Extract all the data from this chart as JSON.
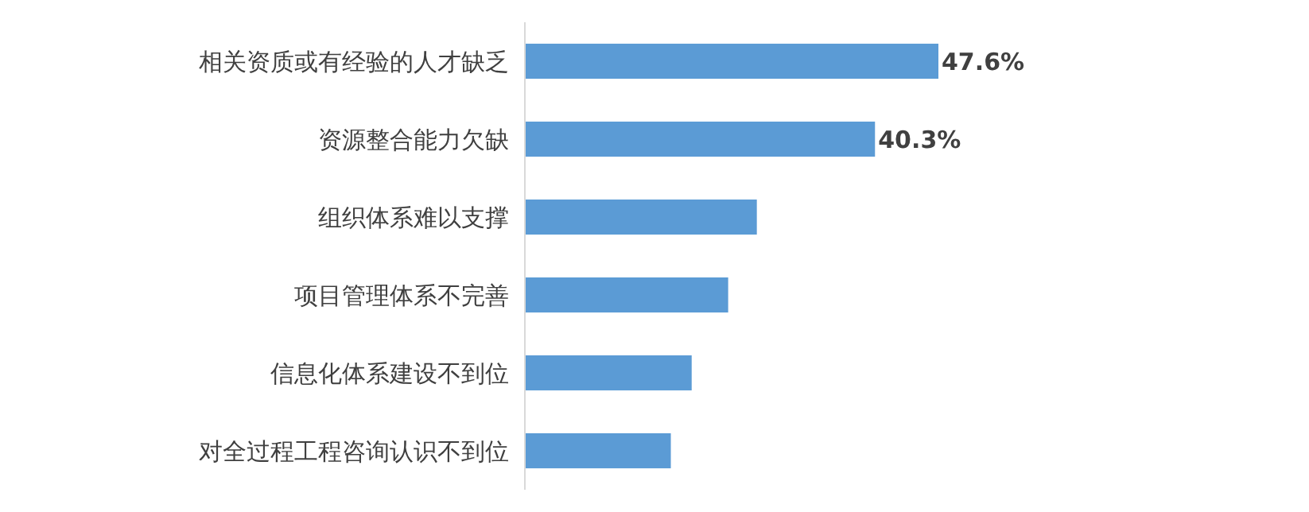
{
  "chart_data": {
    "type": "bar",
    "orientation": "horizontal",
    "categories": [
      "相关资质或有经验的人才缺乏",
      "资源整合能力欠缺",
      "组织体系难以支撑",
      "项目管理体系不完善",
      "信息化体系建设不到位",
      "对全过程工程咨询认识不到位"
    ],
    "values": [
      47.6,
      40.3,
      26.7,
      23.4,
      19.2,
      16.8
    ],
    "value_labels": [
      "47.6%",
      "40.3%",
      null,
      null,
      null,
      null
    ],
    "color": "#5b9bd5"
  }
}
